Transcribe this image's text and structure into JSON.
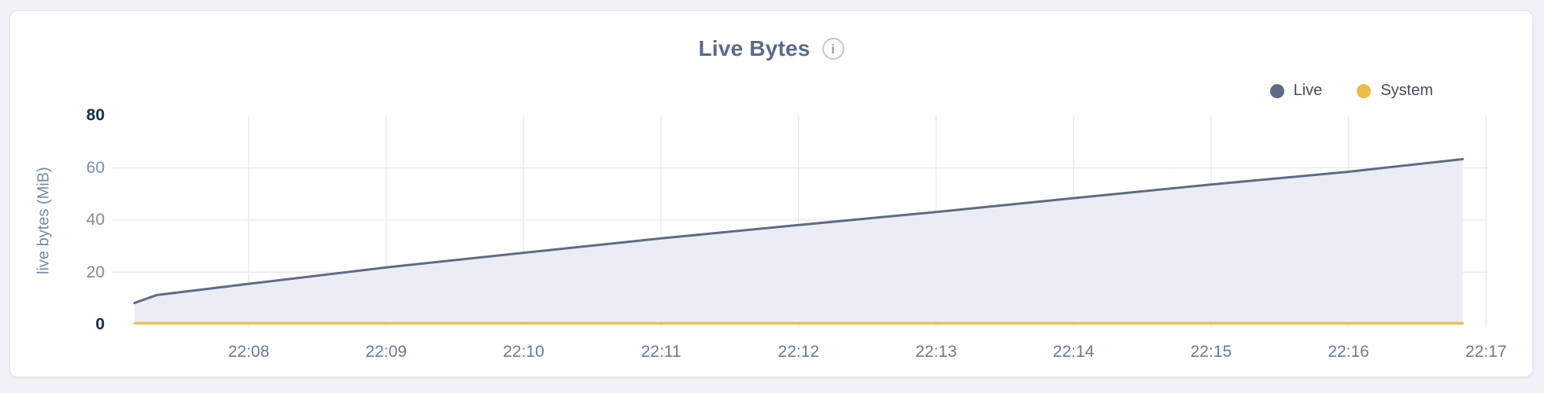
{
  "page": {
    "background": "#f1f2f6"
  },
  "card": {
    "background": "#ffffff",
    "border_color": "#e3e4e9"
  },
  "header": {
    "info_icon_glyph": "i",
    "info_icon_name": "info-circle"
  },
  "chart_data": {
    "type": "area",
    "title": "Live Bytes",
    "ylabel": "live bytes (MiB)",
    "xlabel": "",
    "x_tick_labels": [
      "22:08",
      "22:09",
      "22:10",
      "22:11",
      "22:12",
      "22:13",
      "22:14",
      "22:15",
      "22:16",
      "22:17"
    ],
    "y_tick_labels": [
      "0",
      "20",
      "40",
      "60",
      "80"
    ],
    "ylim": [
      0,
      80
    ],
    "x_range_minutes_after_2200": [
      7.0,
      17.0
    ],
    "grid": true,
    "legend_position": "top-right",
    "series": [
      {
        "name": "Live",
        "color": "#5f6c87",
        "fill": "#ecedf4",
        "points_min_after_2200": [
          [
            7.17,
            8.3
          ],
          [
            7.33,
            11.3
          ],
          [
            8.0,
            15.6
          ],
          [
            9.0,
            21.9
          ],
          [
            10.0,
            27.5
          ],
          [
            11.0,
            33.0
          ],
          [
            12.0,
            38.1
          ],
          [
            13.0,
            43.1
          ],
          [
            14.0,
            48.4
          ],
          [
            15.0,
            53.6
          ],
          [
            16.0,
            58.5
          ],
          [
            16.83,
            63.3
          ]
        ]
      },
      {
        "name": "System",
        "color": "#ecbb45",
        "fill": null,
        "points_min_after_2200": [
          [
            7.17,
            0.5
          ],
          [
            16.83,
            0.5
          ]
        ]
      }
    ],
    "grid_color": "#ebebee"
  }
}
